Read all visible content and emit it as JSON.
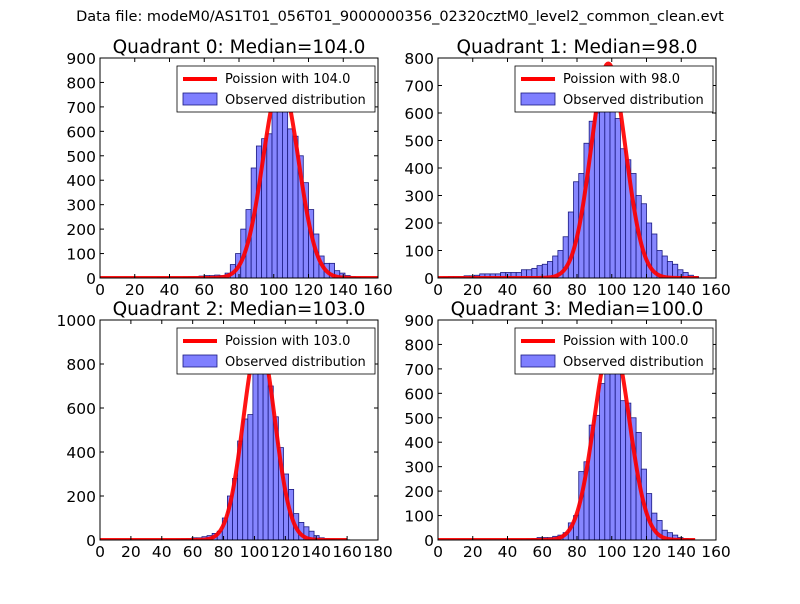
{
  "figure": {
    "supertitle": "Data file: modeM0/AS1T01_056T01_9000000356_02320cztM0_level2_common_clean.evt"
  },
  "colors": {
    "fit_line": "#ff0000",
    "bars_fill": "#7f7fff",
    "bars_edge": "#1a1a80",
    "axes": "#000000"
  },
  "chart_data": [
    {
      "type": "bar",
      "title": "Quadrant 0: Median=104.0",
      "xlim": [
        0,
        160
      ],
      "ylim": [
        0,
        900
      ],
      "xticks": [
        0,
        20,
        40,
        60,
        80,
        100,
        120,
        140,
        160
      ],
      "yticks": [
        0,
        100,
        200,
        300,
        400,
        500,
        600,
        700,
        800,
        900
      ],
      "legend": {
        "position": "top-right",
        "line_label": "Poission with 104.0",
        "bar_label": "Observed distribution"
      },
      "bin_width": 3,
      "bin_starts": [
        0,
        3,
        6,
        9,
        12,
        15,
        18,
        21,
        24,
        27,
        30,
        33,
        36,
        39,
        42,
        45,
        48,
        51,
        54,
        57,
        60,
        63,
        66,
        69,
        72,
        75,
        78,
        81,
        84,
        87,
        90,
        93,
        96,
        99,
        102,
        105,
        108,
        111,
        114,
        117,
        120,
        123,
        126,
        129,
        132,
        135,
        138,
        141,
        144,
        147,
        150
      ],
      "counts": [
        1,
        1,
        1,
        1,
        1,
        1,
        1,
        1,
        1,
        1,
        1,
        2,
        2,
        2,
        2,
        2,
        3,
        4,
        5,
        8,
        10,
        10,
        12,
        10,
        20,
        55,
        100,
        200,
        280,
        450,
        540,
        570,
        590,
        770,
        690,
        680,
        610,
        580,
        500,
        390,
        280,
        180,
        90,
        60,
        60,
        30,
        20,
        10,
        5,
        2,
        1
      ],
      "fit": {
        "label": "Poission with 104.0",
        "mean": 104.0,
        "peak": 800,
        "x_range": [
          0,
          160
        ]
      }
    },
    {
      "type": "bar",
      "title": "Quadrant 1: Median=98.0",
      "xlim": [
        0,
        160
      ],
      "ylim": [
        0,
        800
      ],
      "xticks": [
        0,
        20,
        40,
        60,
        80,
        100,
        120,
        140,
        160
      ],
      "yticks": [
        0,
        100,
        200,
        300,
        400,
        500,
        600,
        700,
        800
      ],
      "legend": {
        "position": "top-right",
        "line_label": "Poission with 98.0",
        "bar_label": "Observed distribution"
      },
      "bin_width": 3,
      "bin_starts": [
        0,
        3,
        6,
        9,
        12,
        15,
        18,
        21,
        24,
        27,
        30,
        33,
        36,
        39,
        42,
        45,
        48,
        51,
        54,
        57,
        60,
        63,
        66,
        69,
        72,
        75,
        78,
        81,
        84,
        87,
        90,
        93,
        96,
        99,
        102,
        105,
        108,
        111,
        114,
        117,
        120,
        123,
        126,
        129,
        132,
        135,
        138,
        141,
        144,
        147
      ],
      "counts": [
        2,
        3,
        5,
        5,
        5,
        8,
        8,
        10,
        15,
        15,
        15,
        15,
        20,
        20,
        20,
        20,
        30,
        30,
        35,
        45,
        50,
        60,
        80,
        100,
        150,
        240,
        350,
        380,
        490,
        570,
        600,
        760,
        770,
        730,
        580,
        470,
        430,
        380,
        300,
        270,
        200,
        160,
        100,
        80,
        60,
        50,
        30,
        20,
        10,
        5
      ],
      "fit": {
        "label": "Poission with 98.0",
        "mean": 98.0,
        "peak": 780,
        "x_range": [
          0,
          150
        ]
      }
    },
    {
      "type": "bar",
      "title": "Quadrant 2: Median=103.0",
      "xlim": [
        0,
        180
      ],
      "ylim": [
        0,
        1000
      ],
      "xticks": [
        0,
        20,
        40,
        60,
        80,
        100,
        120,
        140,
        160,
        180
      ],
      "yticks": [
        0,
        200,
        400,
        600,
        800,
        1000
      ],
      "legend": {
        "position": "top-right",
        "line_label": "Poission with 103.0",
        "bar_label": "Observed distribution"
      },
      "bin_width": 3.3,
      "bin_starts": [
        0,
        3.3,
        6.6,
        9.9,
        13.2,
        16.5,
        19.8,
        23.1,
        26.4,
        29.7,
        33,
        36.3,
        39.6,
        42.9,
        46.2,
        49.5,
        52.8,
        56.1,
        59.4,
        62.7,
        66,
        69.3,
        72.6,
        75.9,
        79.2,
        82.5,
        85.8,
        89.1,
        92.4,
        95.7,
        99,
        102.3,
        105.6,
        108.9,
        112.2,
        115.5,
        118.8,
        122.1,
        125.4,
        128.7,
        132,
        135.3,
        138.6,
        141.9,
        145.2,
        148.5,
        151.8,
        155.1,
        158.4
      ],
      "counts": [
        1,
        1,
        1,
        1,
        1,
        1,
        1,
        1,
        1,
        1,
        1,
        1,
        1,
        2,
        2,
        3,
        4,
        5,
        10,
        10,
        15,
        20,
        30,
        40,
        100,
        200,
        280,
        450,
        550,
        570,
        900,
        770,
        800,
        700,
        560,
        420,
        300,
        230,
        120,
        80,
        60,
        40,
        20,
        10,
        5,
        3,
        2,
        1,
        1
      ],
      "fit": {
        "label": "Poission with 103.0",
        "mean": 103.0,
        "peak": 910,
        "x_range": [
          0,
          160
        ]
      }
    },
    {
      "type": "bar",
      "title": "Quadrant 3: Median=100.0",
      "xlim": [
        0,
        160
      ],
      "ylim": [
        0,
        900
      ],
      "xticks": [
        0,
        20,
        40,
        60,
        80,
        100,
        120,
        140,
        160
      ],
      "yticks": [
        0,
        100,
        200,
        300,
        400,
        500,
        600,
        700,
        800,
        900
      ],
      "legend": {
        "position": "top-right",
        "line_label": "Poission with 100.0",
        "bar_label": "Observed distribution"
      },
      "bin_width": 3,
      "bin_starts": [
        0,
        3,
        6,
        9,
        12,
        15,
        18,
        21,
        24,
        27,
        30,
        33,
        36,
        39,
        42,
        45,
        48,
        51,
        54,
        57,
        60,
        63,
        66,
        69,
        72,
        75,
        78,
        81,
        84,
        87,
        90,
        93,
        96,
        99,
        102,
        105,
        108,
        111,
        114,
        117,
        120,
        123,
        126,
        129,
        132,
        135,
        138,
        141,
        144
      ],
      "counts": [
        1,
        1,
        1,
        1,
        1,
        1,
        1,
        1,
        1,
        1,
        1,
        1,
        1,
        1,
        2,
        2,
        2,
        3,
        5,
        10,
        10,
        10,
        15,
        20,
        30,
        70,
        100,
        280,
        320,
        470,
        510,
        640,
        800,
        820,
        760,
        570,
        560,
        500,
        440,
        290,
        190,
        110,
        80,
        40,
        30,
        20,
        10,
        5,
        2
      ],
      "fit": {
        "label": "Poission with 100.0",
        "mean": 100.0,
        "peak": 820,
        "x_range": [
          0,
          148
        ]
      }
    }
  ]
}
